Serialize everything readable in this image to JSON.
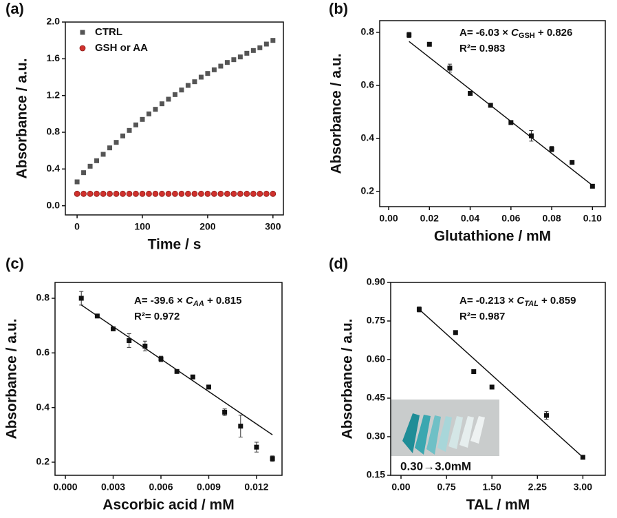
{
  "chart_data": [
    {
      "type": "scatter",
      "panel": "(a)",
      "xlabel": "Time / s",
      "ylabel": "Absorbance / a.u.",
      "x": [
        0,
        10,
        20,
        30,
        40,
        50,
        60,
        70,
        80,
        90,
        100,
        110,
        120,
        130,
        140,
        150,
        160,
        170,
        180,
        190,
        200,
        210,
        220,
        230,
        240,
        250,
        260,
        270,
        280,
        290,
        300
      ],
      "series": [
        {
          "name": "CTRL",
          "color": "#555555",
          "marker": "square",
          "values": [
            0.26,
            0.36,
            0.43,
            0.49,
            0.56,
            0.63,
            0.69,
            0.76,
            0.82,
            0.88,
            0.94,
            1.0,
            1.05,
            1.11,
            1.16,
            1.21,
            1.26,
            1.31,
            1.35,
            1.4,
            1.44,
            1.48,
            1.52,
            1.56,
            1.59,
            1.62,
            1.66,
            1.69,
            1.72,
            1.76,
            1.8
          ]
        },
        {
          "name": "GSH or AA",
          "color": "#d0312d",
          "marker": "circle",
          "values": [
            0.13,
            0.13,
            0.13,
            0.13,
            0.13,
            0.13,
            0.13,
            0.13,
            0.13,
            0.13,
            0.13,
            0.13,
            0.13,
            0.13,
            0.13,
            0.13,
            0.13,
            0.13,
            0.13,
            0.13,
            0.13,
            0.13,
            0.13,
            0.13,
            0.13,
            0.13,
            0.13,
            0.13,
            0.13,
            0.13,
            0.13
          ]
        }
      ],
      "xlim": [
        -18,
        316
      ],
      "ylim": [
        -0.1,
        2.0
      ],
      "xticks": [
        0,
        100,
        200,
        300
      ],
      "yticks": [
        {
          "value": 0,
          "label": "0.0"
        },
        0.4,
        0.8,
        1.2,
        1.6,
        {
          "value": 2,
          "label": "2.0"
        }
      ],
      "legend": "upper left"
    },
    {
      "type": "scatter",
      "panel": "(b)",
      "xlabel": "Glutathione / mM",
      "ylabel": "Absorbance / a.u.",
      "x": [
        0.01,
        0.02,
        0.03,
        0.04,
        0.05,
        0.06,
        0.07,
        0.08,
        0.09,
        0.1
      ],
      "values": [
        0.79,
        0.755,
        0.665,
        0.57,
        0.525,
        0.46,
        0.41,
        0.36,
        0.31,
        0.22
      ],
      "errors": [
        0.01,
        0.005,
        0.015,
        0.005,
        0.005,
        0.005,
        0.02,
        0.01,
        0.005,
        0.005
      ],
      "color": "#111111",
      "fit": {
        "slope": -6.03,
        "intercept": 0.826
      },
      "equation": {
        "lhs": "A= -6.03 × ",
        "var": "C",
        "sub": "GSH",
        "rhs": " + 0.826"
      },
      "r2": "R²= 0.983",
      "xlim": [
        -0.0044,
        0.1063
      ],
      "ylim": [
        0.143,
        0.844
      ],
      "xticks": [
        {
          "value": 0,
          "label": "0.00"
        },
        0.02,
        0.04,
        0.06,
        0.08,
        {
          "value": 0.1,
          "label": "0.10"
        }
      ],
      "yticks": [
        0.2,
        0.4,
        0.6,
        0.8
      ]
    },
    {
      "type": "scatter",
      "panel": "(c)",
      "xlabel": "Ascorbic acid / mM",
      "ylabel": "Absorbance / a.u.",
      "x": [
        0.001,
        0.002,
        0.003,
        0.004,
        0.005,
        0.006,
        0.007,
        0.008,
        0.009,
        0.01,
        0.011,
        0.012,
        0.013
      ],
      "values": [
        0.8,
        0.735,
        0.688,
        0.645,
        0.625,
        0.578,
        0.532,
        0.512,
        0.475,
        0.383,
        0.332,
        0.255,
        0.213
      ],
      "errors": [
        0.025,
        0.005,
        0.005,
        0.025,
        0.018,
        0.01,
        0.005,
        0.005,
        0.005,
        0.012,
        0.04,
        0.018,
        0.01
      ],
      "color": "#111111",
      "fit": {
        "slope": -39.6,
        "intercept": 0.815
      },
      "equation": {
        "lhs": "A= -39.6 × ",
        "var": "C",
        "sub": "AA",
        "rhs": " + 0.815"
      },
      "r2": "R²= 0.972",
      "xlim": [
        -0.00065,
        0.0136
      ],
      "ylim": [
        0.152,
        0.858
      ],
      "xticks": [
        {
          "value": 0,
          "label": "0.000"
        },
        0.003,
        0.006,
        0.009,
        0.012
      ],
      "yticks": [
        0.2,
        0.4,
        0.6,
        0.8
      ]
    },
    {
      "type": "scatter",
      "panel": "(d)",
      "xlabel": "TAL / mM",
      "ylabel": "Absorbance / a.u.",
      "x": [
        0.3,
        0.9,
        1.2,
        1.5,
        2.4,
        3.0
      ],
      "values": [
        0.795,
        0.705,
        0.553,
        0.493,
        0.383,
        0.22
      ],
      "errors": [
        0.01,
        0.005,
        0.005,
        0.005,
        0.015,
        0.005
      ],
      "color": "#111111",
      "fit": {
        "slope": -0.213,
        "intercept": 0.859
      },
      "equation": {
        "lhs": "A= -0.213 × ",
        "var": "C",
        "sub": "TAL",
        "rhs": " + 0.859"
      },
      "r2": "R²= 0.987",
      "inset_label": "0.30→3.0mM",
      "xlim": [
        -0.17,
        3.37
      ],
      "ylim": [
        0.15,
        0.9
      ],
      "xticks": [
        {
          "value": 0,
          "label": "0.00"
        },
        0.75,
        {
          "value": 1.5,
          "label": "1.50"
        },
        2.25,
        {
          "value": 3,
          "label": "3.00"
        }
      ],
      "yticks": [
        0.15,
        {
          "value": 0.3,
          "label": "0.30"
        },
        0.45,
        {
          "value": 0.6,
          "label": "0.60"
        },
        0.75,
        {
          "value": 0.9,
          "label": "0.90"
        }
      ]
    }
  ]
}
